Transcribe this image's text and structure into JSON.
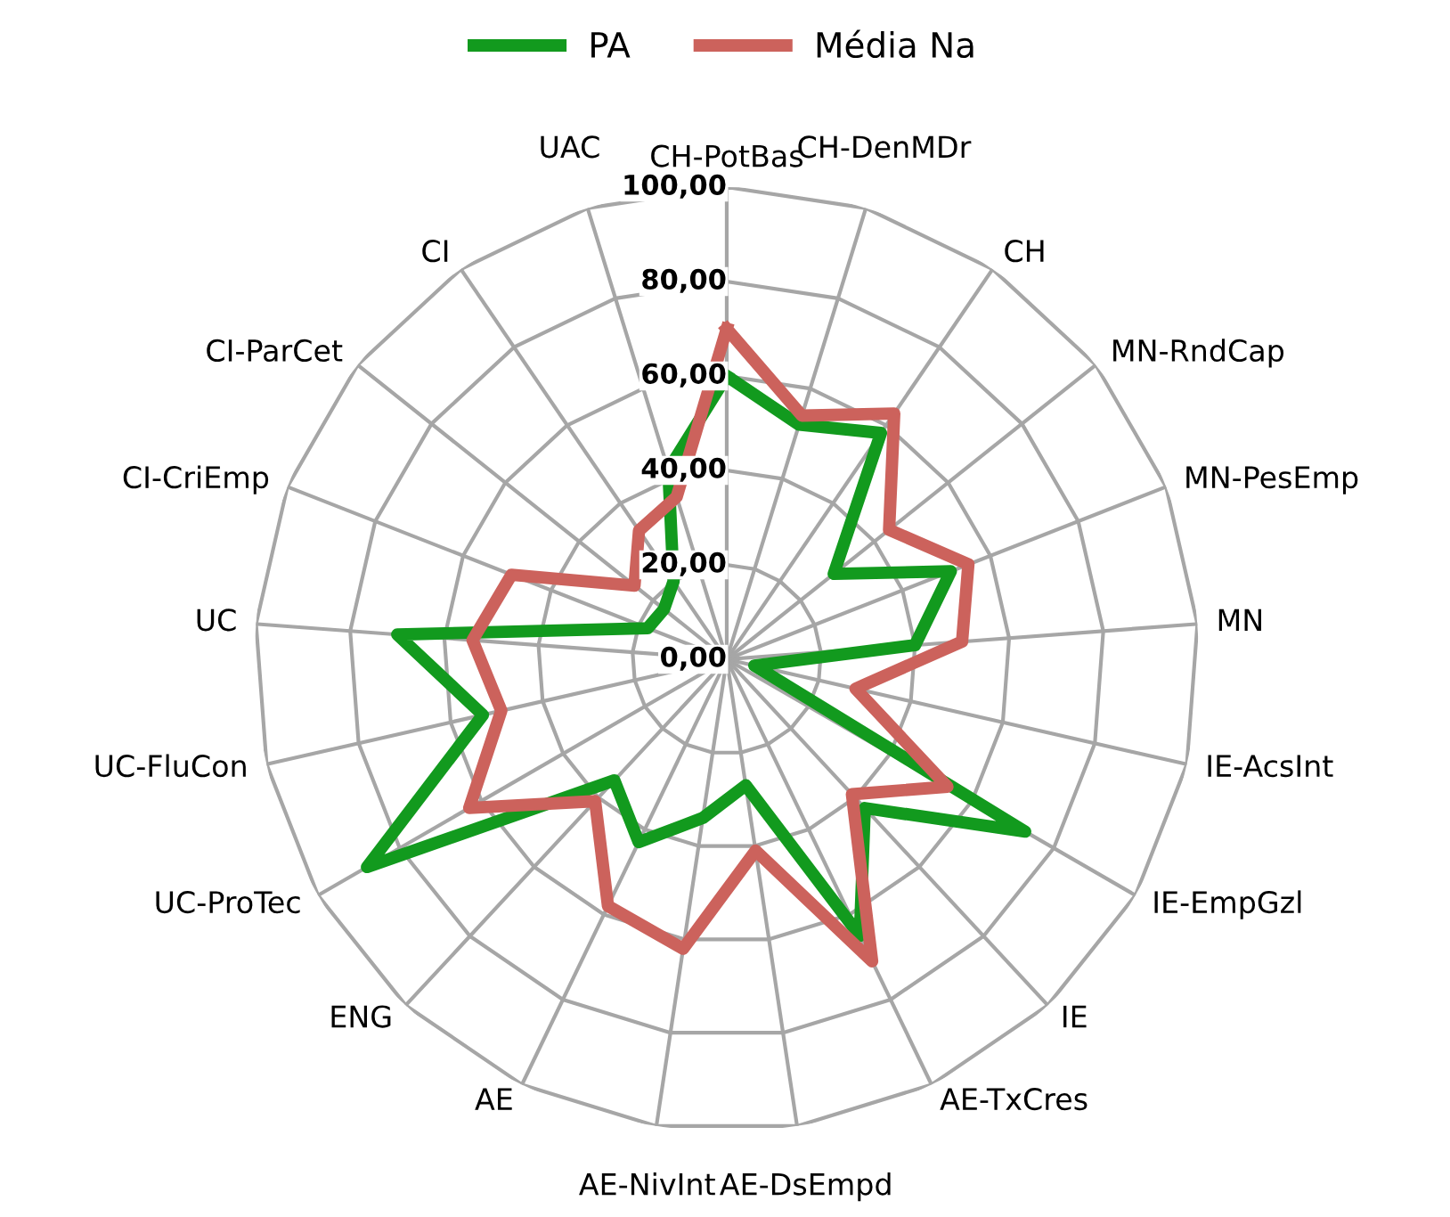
{
  "chart_data": {
    "type": "radar",
    "categories": [
      "CH-PotBas",
      "CH-DenMDr",
      "CH",
      "MN-RndCap",
      "MN-PesEmp",
      "MN",
      "IE-AcsInt",
      "IE-EmpGzl",
      "IE",
      "AE-TxCres",
      "AE-DsEmpd",
      "AE-NivInt",
      "AE",
      "ENG",
      "UC-ProTec",
      "UC-FluCon",
      "UC",
      "CI-CriEmp",
      "CI-ParCet",
      "CI",
      "UAC"
    ],
    "series": [
      {
        "name": "PA",
        "color": "#129a1e",
        "values": [
          60,
          52,
          58,
          29,
          51,
          40,
          6,
          73,
          43,
          65,
          27,
          34,
          43,
          35,
          88,
          53,
          70,
          18,
          17,
          20,
          42
        ]
      },
      {
        "name": "Média Na",
        "color": "#cc625c",
        "values": [
          70,
          54,
          63,
          44,
          55,
          50,
          28,
          54,
          39,
          71,
          41,
          62,
          58,
          41,
          63,
          49,
          54,
          49,
          25,
          33,
          36
        ]
      }
    ],
    "ylim": [
      0,
      100
    ],
    "yticks": [
      {
        "value": 0,
        "label": "0,00"
      },
      {
        "value": 20,
        "label": "20,00"
      },
      {
        "value": 40,
        "label": "40,00"
      },
      {
        "value": 60,
        "label": "60,00"
      },
      {
        "value": 80,
        "label": "80,00"
      },
      {
        "value": 100,
        "label": "100,00"
      }
    ],
    "grid": true,
    "legend": "top",
    "marker": "none",
    "line_style": "solid"
  }
}
